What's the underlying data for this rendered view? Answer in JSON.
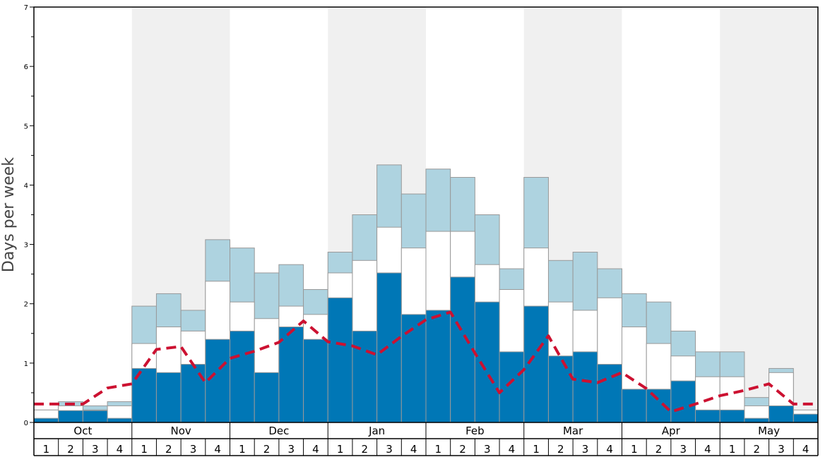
{
  "chart_data": {
    "type": "bar",
    "ylabel": "Days per week",
    "ylim": [
      0,
      7
    ],
    "yticks": [
      0,
      1,
      2,
      3,
      4,
      5,
      6,
      7
    ],
    "months": [
      "Oct",
      "Nov",
      "Dec",
      "Jan",
      "Feb",
      "Mar",
      "Apr",
      "May"
    ],
    "weeks": [
      "1",
      "2",
      "3",
      "4"
    ],
    "colors": {
      "dark": "#0077b6",
      "white": "#ffffff",
      "light": "#aed3e0",
      "line": "#cc1131",
      "band": "#f0f0f0",
      "bar_edge": "#999999"
    },
    "series": [
      {
        "values": [
          0.07,
          0.2,
          0.2,
          0.07,
          0.91,
          0.84,
          0.98,
          1.4,
          1.54,
          0.84,
          1.61,
          1.4,
          2.1,
          1.54,
          2.52,
          1.82,
          1.89,
          2.45,
          2.03,
          1.19,
          1.96,
          1.12,
          1.19,
          0.98,
          0.56,
          0.56,
          0.7,
          0.21,
          0.21,
          0.07,
          0.28,
          0.14
        ]
      },
      {
        "values": [
          0.21,
          0.28,
          0.21,
          0.28,
          1.33,
          1.61,
          1.54,
          2.38,
          2.03,
          1.75,
          1.96,
          1.82,
          2.52,
          2.73,
          3.29,
          2.94,
          3.22,
          3.22,
          2.66,
          2.24,
          2.94,
          2.03,
          1.89,
          2.1,
          1.61,
          1.33,
          1.12,
          0.77,
          0.77,
          0.28,
          0.84,
          0.21
        ]
      },
      {
        "values": [
          0.21,
          0.35,
          0.28,
          0.35,
          1.96,
          2.17,
          1.89,
          3.08,
          2.94,
          2.52,
          2.66,
          2.24,
          2.87,
          3.5,
          4.34,
          3.85,
          4.27,
          4.13,
          3.5,
          2.59,
          4.13,
          2.73,
          2.87,
          2.59,
          2.17,
          2.03,
          1.54,
          1.19,
          1.19,
          0.42,
          0.91,
          0.14
        ]
      },
      {
        "values": [
          0.31,
          0.31,
          0.31,
          0.58,
          0.65,
          1.23,
          1.28,
          0.67,
          1.08,
          1.2,
          1.35,
          1.71,
          1.36,
          1.29,
          1.14,
          1.45,
          1.73,
          1.86,
          1.17,
          0.5,
          0.89,
          1.46,
          0.73,
          0.67,
          0.84,
          0.57,
          0.18,
          0.31,
          0.45,
          0.54,
          0.65,
          0.31,
          0.31
        ]
      }
    ]
  }
}
